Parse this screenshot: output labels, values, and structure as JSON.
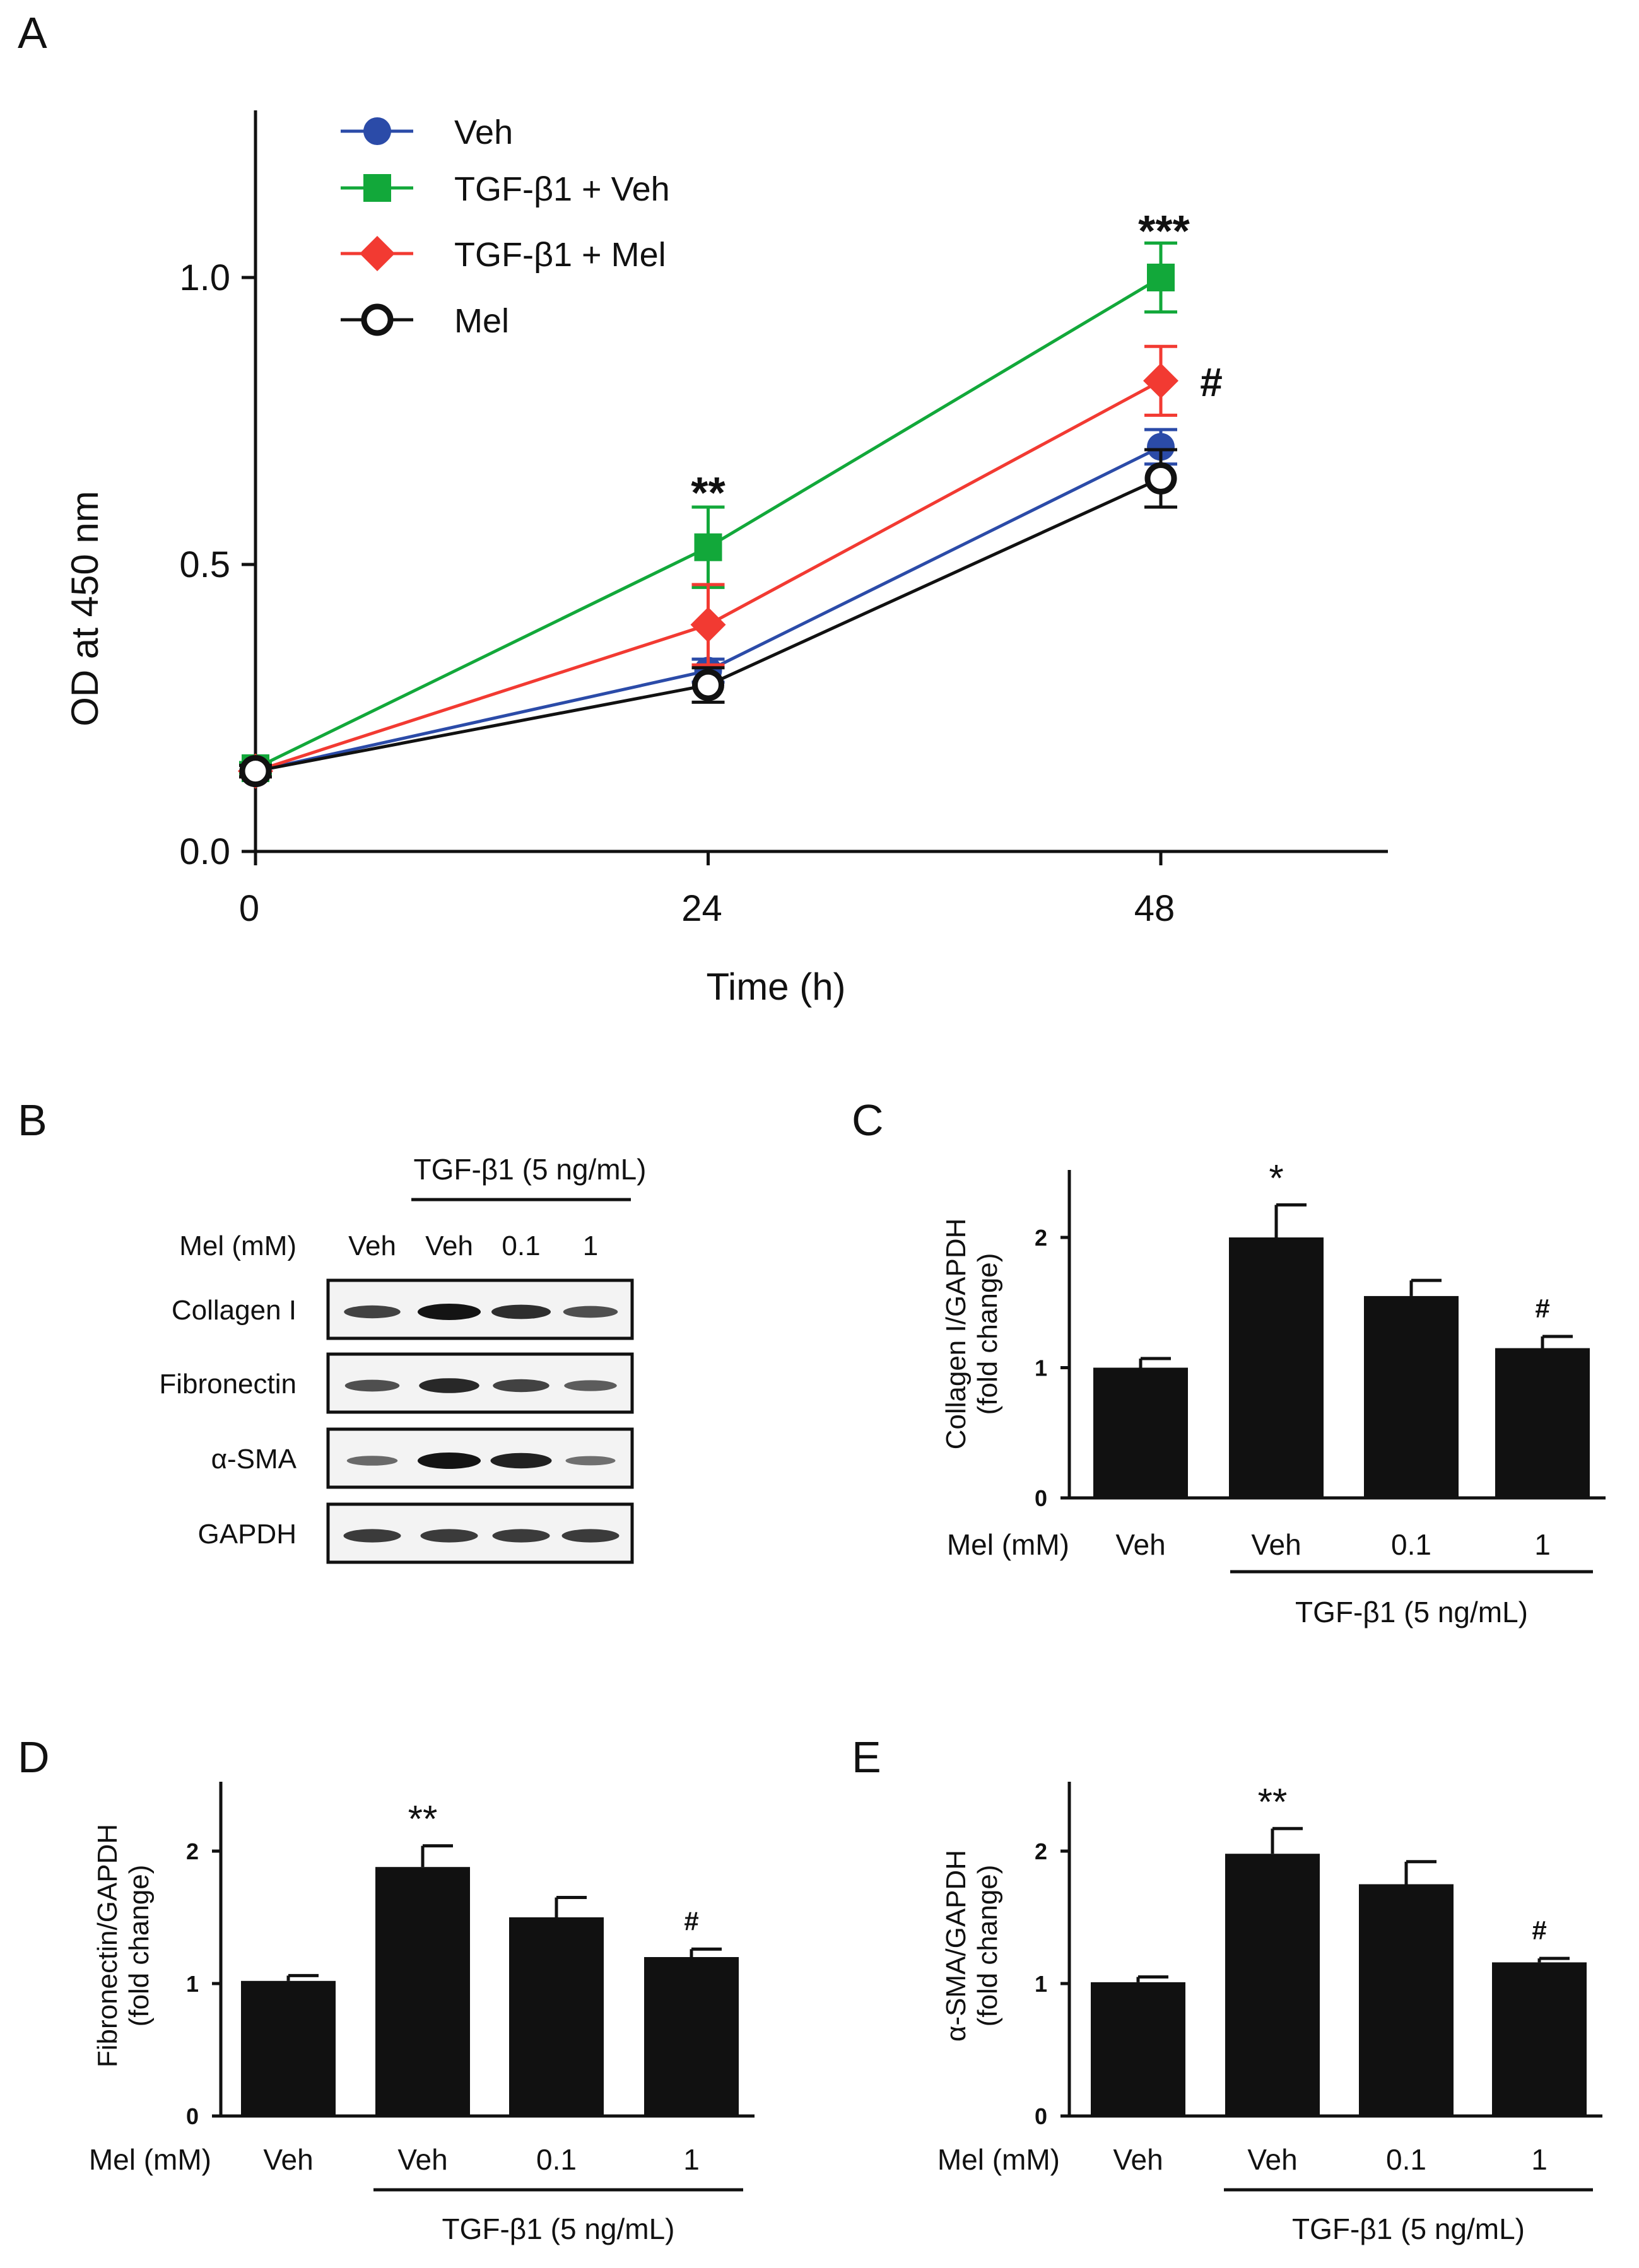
{
  "panels": {
    "A": "A",
    "B": "B",
    "C": "C",
    "D": "D",
    "E": "E"
  },
  "colors": {
    "Veh": "#2b4ba8",
    "TGF-β1 + Veh": "#12a83a",
    "TGF-β1 + Mel": "#f23a32",
    "Mel": "#111111",
    "bar": "#111111"
  },
  "chart_data": [
    {
      "id": "A",
      "type": "line",
      "xlabel": "Time (h)",
      "ylabel": "OD at 450 nm",
      "x": [
        0,
        24,
        48
      ],
      "xticks": [
        "0",
        "24",
        "48"
      ],
      "ylim": [
        0,
        1.3
      ],
      "yticks": [
        "0.0",
        "0.5",
        "1.0"
      ],
      "series": [
        {
          "name": "Veh",
          "marker": "circle",
          "values": [
            0.14,
            0.315,
            0.705
          ],
          "errors": [
            0.01,
            0.02,
            0.03
          ]
        },
        {
          "name": "TGF-β1 + Veh",
          "marker": "square",
          "values": [
            0.145,
            0.53,
            1.0
          ],
          "errors": [
            0.01,
            0.07,
            0.06
          ]
        },
        {
          "name": "TGF-β1 + Mel",
          "marker": "diamond",
          "values": [
            0.14,
            0.395,
            0.82
          ],
          "errors": [
            0.01,
            0.07,
            0.06
          ]
        },
        {
          "name": "Mel",
          "marker": "open-circle",
          "values": [
            0.14,
            0.29,
            0.65
          ],
          "errors": [
            0.01,
            0.03,
            0.05
          ]
        }
      ],
      "annotations": [
        {
          "x": 24,
          "text": "**"
        },
        {
          "x": 48,
          "text": "***"
        },
        {
          "x": 48,
          "text": "#"
        }
      ]
    },
    {
      "id": "C",
      "type": "bar",
      "ylabel_line1": "Collagen I/GAPDH",
      "ylabel_line2": "(fold change)",
      "row_label": "Mel (mM)",
      "categories": [
        "Veh",
        "Veh",
        "0.1",
        "1"
      ],
      "group_label": "TGF-β1 (5 ng/mL)",
      "ylim": [
        0,
        2.5
      ],
      "yticks": [
        "0",
        "1",
        "2"
      ],
      "values": [
        1.0,
        2.0,
        1.55,
        1.15
      ],
      "errors": [
        0.07,
        0.25,
        0.12,
        0.09
      ],
      "annotations": [
        "",
        "*",
        "",
        "#"
      ]
    },
    {
      "id": "D",
      "type": "bar",
      "ylabel_line1": "Fibronectin/GAPDH",
      "ylabel_line2": "(fold change)",
      "row_label": "Mel (mM)",
      "categories": [
        "Veh",
        "Veh",
        "0.1",
        "1"
      ],
      "group_label": "TGF-β1 (5 ng/mL)",
      "ylim": [
        0,
        2.5
      ],
      "yticks": [
        "0",
        "1",
        "2"
      ],
      "values": [
        1.02,
        1.88,
        1.5,
        1.2
      ],
      "errors": [
        0.04,
        0.16,
        0.15,
        0.06
      ],
      "annotations": [
        "",
        "**",
        "",
        "#"
      ]
    },
    {
      "id": "E",
      "type": "bar",
      "ylabel_line1": "α-SMA/GAPDH",
      "ylabel_line2": "(fold change)",
      "row_label": "Mel (mM)",
      "categories": [
        "Veh",
        "Veh",
        "0.1",
        "1"
      ],
      "group_label": "TGF-β1 (5 ng/mL)",
      "ylim": [
        0,
        2.5
      ],
      "yticks": [
        "0",
        "1",
        "2"
      ],
      "values": [
        1.01,
        1.98,
        1.75,
        1.16
      ],
      "errors": [
        0.04,
        0.19,
        0.17,
        0.03
      ],
      "annotations": [
        "",
        "**",
        "",
        "#"
      ]
    }
  ],
  "blot": {
    "treatment_label": "TGF-β1 (5 ng/mL)",
    "row_label": "Mel (mM)",
    "lanes": [
      "Veh",
      "Veh",
      "0.1",
      "1"
    ],
    "proteins": [
      "Collagen I",
      "Fibronectin",
      "α-SMA",
      "GAPDH"
    ],
    "band_intensity": [
      [
        0.65,
        1.0,
        0.8,
        0.55
      ],
      [
        0.55,
        0.85,
        0.65,
        0.45
      ],
      [
        0.35,
        1.0,
        0.9,
        0.3
      ],
      [
        0.7,
        0.7,
        0.7,
        0.7
      ]
    ]
  }
}
